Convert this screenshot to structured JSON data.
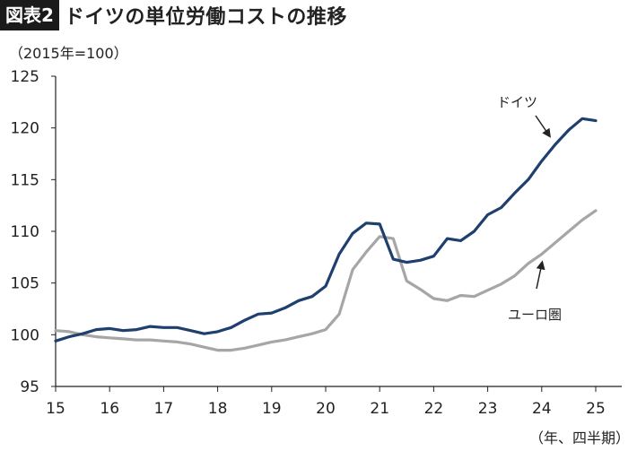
{
  "figure": {
    "badge": "図表2",
    "title": "ドイツの単位労働コストの推移",
    "unit": "（2015年=100）",
    "footer": "（年、四半期）"
  },
  "colors": {
    "germany": "#1f3f6e",
    "eurozone": "#a6a6a6",
    "axis": "#222222"
  },
  "chart_data": {
    "type": "line",
    "title": "ドイツの単位労働コストの推移",
    "xlabel": "（年、四半期）",
    "ylabel": "（2015年=100）",
    "ylim": [
      95,
      125
    ],
    "xlim": [
      2015,
      2025.5
    ],
    "grid": false,
    "legend": "direct annotations",
    "x_ticks": [
      {
        "label": "15",
        "value": 2015
      },
      {
        "label": "16",
        "value": 2016
      },
      {
        "label": "17",
        "value": 2017
      },
      {
        "label": "18",
        "value": 2018
      },
      {
        "label": "19",
        "value": 2019
      },
      {
        "label": "20",
        "value": 2020
      },
      {
        "label": "21",
        "value": 2021
      },
      {
        "label": "22",
        "value": 2022
      },
      {
        "label": "23",
        "value": 2023
      },
      {
        "label": "24",
        "value": 2024
      },
      {
        "label": "25",
        "value": 2025
      }
    ],
    "y_ticks": [
      95,
      100,
      105,
      110,
      115,
      120,
      125
    ],
    "x": [
      2015.0,
      2015.25,
      2015.5,
      2015.75,
      2016.0,
      2016.25,
      2016.5,
      2016.75,
      2017.0,
      2017.25,
      2017.5,
      2017.75,
      2018.0,
      2018.25,
      2018.5,
      2018.75,
      2019.0,
      2019.25,
      2019.5,
      2019.75,
      2020.0,
      2020.25,
      2020.5,
      2020.75,
      2021.0,
      2021.25,
      2021.5,
      2021.75,
      2022.0,
      2022.25,
      2022.5,
      2022.75,
      2023.0,
      2023.25,
      2023.5,
      2023.75,
      2024.0,
      2024.25,
      2024.5,
      2024.75,
      2025.0
    ],
    "series": [
      {
        "name": "ドイツ",
        "color": "#1f3f6e",
        "values": [
          99.4,
          99.8,
          100.1,
          100.5,
          100.6,
          100.4,
          100.5,
          100.8,
          100.7,
          100.7,
          100.4,
          100.1,
          100.3,
          100.7,
          101.4,
          102.0,
          102.1,
          102.6,
          103.3,
          103.7,
          104.7,
          107.8,
          109.8,
          110.8,
          110.7,
          107.3,
          107.0,
          107.2,
          107.6,
          109.3,
          109.1,
          110.0,
          111.6,
          112.3,
          113.7,
          115.0,
          116.8,
          118.4,
          119.8,
          120.9,
          120.7
        ]
      },
      {
        "name": "ユーロ圏",
        "color": "#a6a6a6",
        "values": [
          100.4,
          100.3,
          100.0,
          99.8,
          99.7,
          99.6,
          99.5,
          99.5,
          99.4,
          99.3,
          99.1,
          98.8,
          98.5,
          98.5,
          98.7,
          99.0,
          99.3,
          99.5,
          99.8,
          100.1,
          100.5,
          102.0,
          106.3,
          108.0,
          109.5,
          109.3,
          105.2,
          104.4,
          103.5,
          103.3,
          103.8,
          103.7,
          104.3,
          104.9,
          105.7,
          106.9,
          107.8,
          108.9,
          110.0,
          111.1,
          112.0
        ]
      }
    ],
    "annotations": [
      {
        "text": "ドイツ",
        "series": "ドイツ",
        "target_x": 2024.25
      },
      {
        "text": "ユーロ圏",
        "series": "ユーロ圏",
        "target_x": 2024.0
      }
    ]
  }
}
